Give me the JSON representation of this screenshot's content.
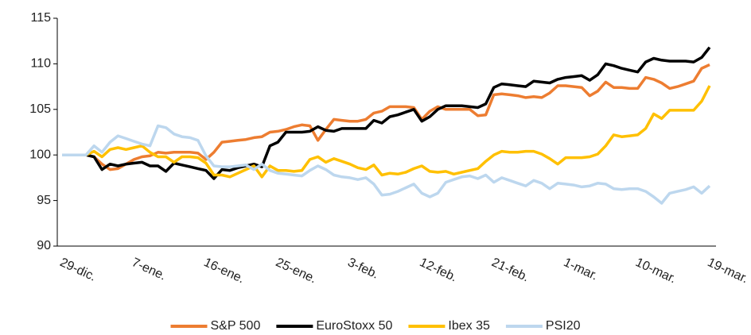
{
  "chart_data": {
    "type": "line",
    "categories": [
      "29-dic.",
      null,
      null,
      null,
      null,
      null,
      null,
      null,
      null,
      "7-ene.",
      null,
      null,
      null,
      null,
      null,
      null,
      null,
      null,
      "16-ene.",
      null,
      null,
      null,
      null,
      null,
      null,
      null,
      null,
      "25-ene.",
      null,
      null,
      null,
      null,
      null,
      null,
      null,
      null,
      "3-feb.",
      null,
      null,
      null,
      null,
      null,
      null,
      null,
      null,
      "12-feb.",
      null,
      null,
      null,
      null,
      null,
      null,
      null,
      null,
      "21-feb.",
      null,
      null,
      null,
      null,
      null,
      null,
      null,
      null,
      "1-mar.",
      null,
      null,
      null,
      null,
      null,
      null,
      null,
      null,
      "10-mar.",
      null,
      null,
      null,
      null,
      null,
      null,
      null,
      null,
      "19-mar."
    ],
    "series": [
      {
        "name": "S&P 500",
        "color": "#ed7d31",
        "values": [
          100,
          100,
          100,
          100,
          99.8,
          99,
          98.4,
          98.5,
          99,
          99.5,
          99.8,
          99.9,
          100.3,
          100.2,
          100.3,
          100.3,
          100.3,
          100.2,
          99.5,
          100.3,
          101.4,
          101.5,
          101.6,
          101.7,
          101.9,
          102,
          102.5,
          102.6,
          102.8,
          103.1,
          103.3,
          103.2,
          101.6,
          102.8,
          103.9,
          103.8,
          103.7,
          103.7,
          103.9,
          104.6,
          104.8,
          105.3,
          105.3,
          105.3,
          105.2,
          103.9,
          104.8,
          105.3,
          105,
          105,
          105,
          105,
          104.3,
          104.4,
          106.6,
          106.7,
          106.6,
          106.5,
          106.3,
          106.4,
          106.3,
          106.8,
          107.6,
          107.6,
          107.5,
          107.4,
          106.5,
          107,
          108,
          107.4,
          107.4,
          107.3,
          107.3,
          108.5,
          108.3,
          107.9,
          107.3,
          107.5,
          107.8,
          108.1,
          109.5,
          109.9
        ]
      },
      {
        "name": "EuroStoxx 50",
        "color": "#000000",
        "values": [
          100,
          100,
          100,
          100,
          99.8,
          98.4,
          99,
          98.8,
          99,
          99.1,
          99.2,
          98.8,
          98.8,
          98.2,
          99.1,
          98.9,
          98.7,
          98.5,
          98.3,
          97.4,
          98.4,
          98.3,
          98.6,
          98.8,
          99,
          98.7,
          101,
          101.4,
          102.5,
          102.5,
          102.5,
          102.6,
          103.1,
          102.7,
          102.6,
          102.9,
          102.9,
          102.9,
          102.9,
          103.8,
          103.5,
          104.2,
          104.4,
          104.7,
          105,
          103.7,
          104.2,
          105,
          105.4,
          105.4,
          105.4,
          105.3,
          105.2,
          105.6,
          107.4,
          107.8,
          107.7,
          107.6,
          107.5,
          108.1,
          108,
          107.9,
          108.3,
          108.5,
          108.6,
          108.7,
          108.2,
          108.8,
          110,
          109.8,
          109.5,
          109.3,
          109.1,
          110.2,
          110.6,
          110.4,
          110.3,
          110.3,
          110.3,
          110.2,
          110.7,
          111.8
        ]
      },
      {
        "name": "Ibex 35",
        "color": "#ffc000",
        "values": [
          100,
          100,
          100,
          100,
          100.4,
          99.8,
          100.6,
          100.8,
          100.6,
          100.8,
          101,
          100.3,
          99.8,
          99.8,
          99.2,
          99.8,
          99.8,
          99.7,
          99.1,
          97.8,
          97.8,
          97.6,
          98,
          98.4,
          98.8,
          97.6,
          98.8,
          98.3,
          98.3,
          98.2,
          98.3,
          99.5,
          99.8,
          99.2,
          99.6,
          99.3,
          99,
          98.6,
          98.4,
          98.9,
          97.8,
          98,
          97.9,
          98.1,
          98.5,
          98.8,
          98.2,
          98.1,
          98.2,
          97.9,
          98.1,
          98.3,
          98.5,
          99.3,
          100,
          100.4,
          100.3,
          100.3,
          100.4,
          100.4,
          100.1,
          99.6,
          99,
          99.7,
          99.7,
          99.7,
          99.8,
          100.1,
          101,
          102.2,
          102,
          102.1,
          102.2,
          102.9,
          104.5,
          104,
          104.9,
          104.9,
          104.9,
          104.9,
          105.9,
          107.6
        ]
      },
      {
        "name": "PSI20",
        "color": "#bdd7ee",
        "values": [
          100,
          100,
          100,
          100,
          101,
          100.3,
          101.4,
          102.1,
          101.8,
          101.5,
          101.2,
          101,
          103.2,
          103,
          102.3,
          102,
          101.9,
          101.6,
          99.9,
          98.8,
          98.7,
          98.7,
          98.8,
          98.9,
          98.4,
          99,
          98.3,
          98,
          97.9,
          97.8,
          97.7,
          98.3,
          98.8,
          98.4,
          97.8,
          97.6,
          97.5,
          97.3,
          97.5,
          96.8,
          95.6,
          95.7,
          96,
          96.4,
          96.8,
          95.8,
          95.4,
          95.8,
          97,
          97.3,
          97.6,
          97.7,
          97.4,
          97.8,
          97,
          97.5,
          97.2,
          96.9,
          96.6,
          97.2,
          96.9,
          96.3,
          96.9,
          96.8,
          96.7,
          96.5,
          96.6,
          96.9,
          96.8,
          96.3,
          96.2,
          96.3,
          96.3,
          96,
          95.4,
          94.7,
          95.8,
          96,
          96.2,
          96.5,
          95.8,
          96.6
        ]
      }
    ],
    "ylim": [
      90,
      115
    ],
    "yticks": [
      90,
      95,
      100,
      105,
      110,
      115
    ],
    "legend": "bottom"
  }
}
